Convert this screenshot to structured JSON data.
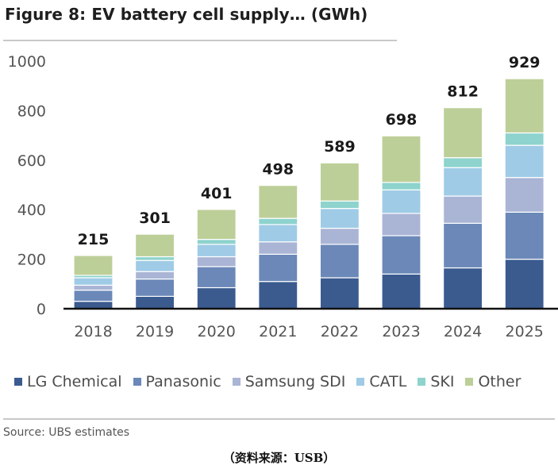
{
  "title": "Figure 8: EV battery cell supply… (GWh)",
  "source": "Source:  UBS estimates",
  "caption": "（资料来源：USB）",
  "chart_data": {
    "type": "bar",
    "stacked": true,
    "title": "Figure 8: EV battery cell supply… (GWh)",
    "xlabel": "",
    "ylabel": "GWh",
    "ylim": [
      0,
      1000
    ],
    "yticks": [
      0,
      200,
      400,
      600,
      800,
      1000
    ],
    "grid": false,
    "legend_position": "bottom",
    "categories": [
      "2018",
      "2019",
      "2020",
      "2021",
      "2022",
      "2023",
      "2024",
      "2025"
    ],
    "totals": [
      215,
      301,
      401,
      498,
      589,
      698,
      812,
      929
    ],
    "series": [
      {
        "name": "LG Chemical",
        "color": "#3b5b8f",
        "values": [
          30,
          50,
          85,
          110,
          125,
          140,
          165,
          200
        ]
      },
      {
        "name": "Panasonic",
        "color": "#6b88b8",
        "values": [
          45,
          70,
          85,
          110,
          135,
          155,
          180,
          190
        ]
      },
      {
        "name": "Samsung SDI",
        "color": "#aab5d5",
        "values": [
          20,
          30,
          40,
          50,
          65,
          90,
          110,
          140
        ]
      },
      {
        "name": "CATL",
        "color": "#9fcbe6",
        "values": [
          30,
          45,
          50,
          70,
          80,
          95,
          115,
          130
        ]
      },
      {
        "name": "SKI",
        "color": "#8ed3cd",
        "values": [
          10,
          15,
          20,
          25,
          30,
          30,
          40,
          50
        ]
      },
      {
        "name": "Other",
        "color": "#bdcf98",
        "values": [
          80,
          91,
          121,
          133,
          154,
          188,
          202,
          219
        ]
      }
    ]
  }
}
